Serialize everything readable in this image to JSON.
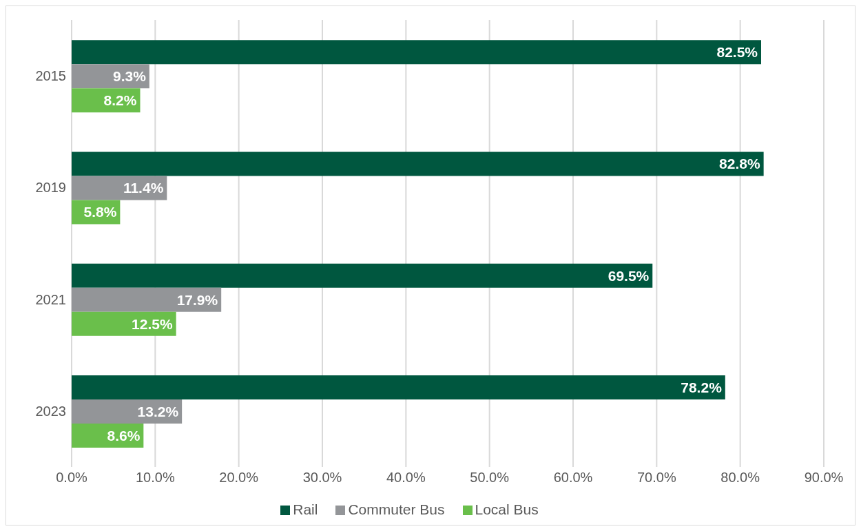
{
  "chart_data": {
    "type": "bar",
    "orientation": "horizontal",
    "categories": [
      "2015",
      "2019",
      "2021",
      "2023"
    ],
    "series": [
      {
        "name": "Rail",
        "color": "#00573f",
        "values": [
          82.5,
          82.8,
          69.5,
          78.2
        ],
        "value_labels": [
          "82.5%",
          "82.8%",
          "69.5%",
          "78.2%"
        ]
      },
      {
        "name": "Commuter Bus",
        "color": "#939598",
        "values": [
          9.3,
          11.4,
          17.9,
          13.2
        ],
        "value_labels": [
          "9.3%",
          "11.4%",
          "17.9%",
          "13.2%"
        ]
      },
      {
        "name": "Local Bus",
        "color": "#6abf4b",
        "values": [
          8.2,
          5.8,
          12.5,
          8.6
        ],
        "value_labels": [
          "8.2%",
          "5.8%",
          "12.5%",
          "8.6%"
        ]
      }
    ],
    "xlim": [
      0,
      90
    ],
    "xticks": [
      {
        "value": 0,
        "label": "0.0%"
      },
      {
        "value": 10,
        "label": "10.0%"
      },
      {
        "value": 20,
        "label": "20.0%"
      },
      {
        "value": 30,
        "label": "30.0%"
      },
      {
        "value": 40,
        "label": "40.0%"
      },
      {
        "value": 50,
        "label": "50.0%"
      },
      {
        "value": 60,
        "label": "60.0%"
      },
      {
        "value": 70,
        "label": "70.0%"
      },
      {
        "value": 80,
        "label": "80.0%"
      },
      {
        "value": 90,
        "label": "90.0%"
      }
    ],
    "grid": "x",
    "legend": "bottom"
  }
}
